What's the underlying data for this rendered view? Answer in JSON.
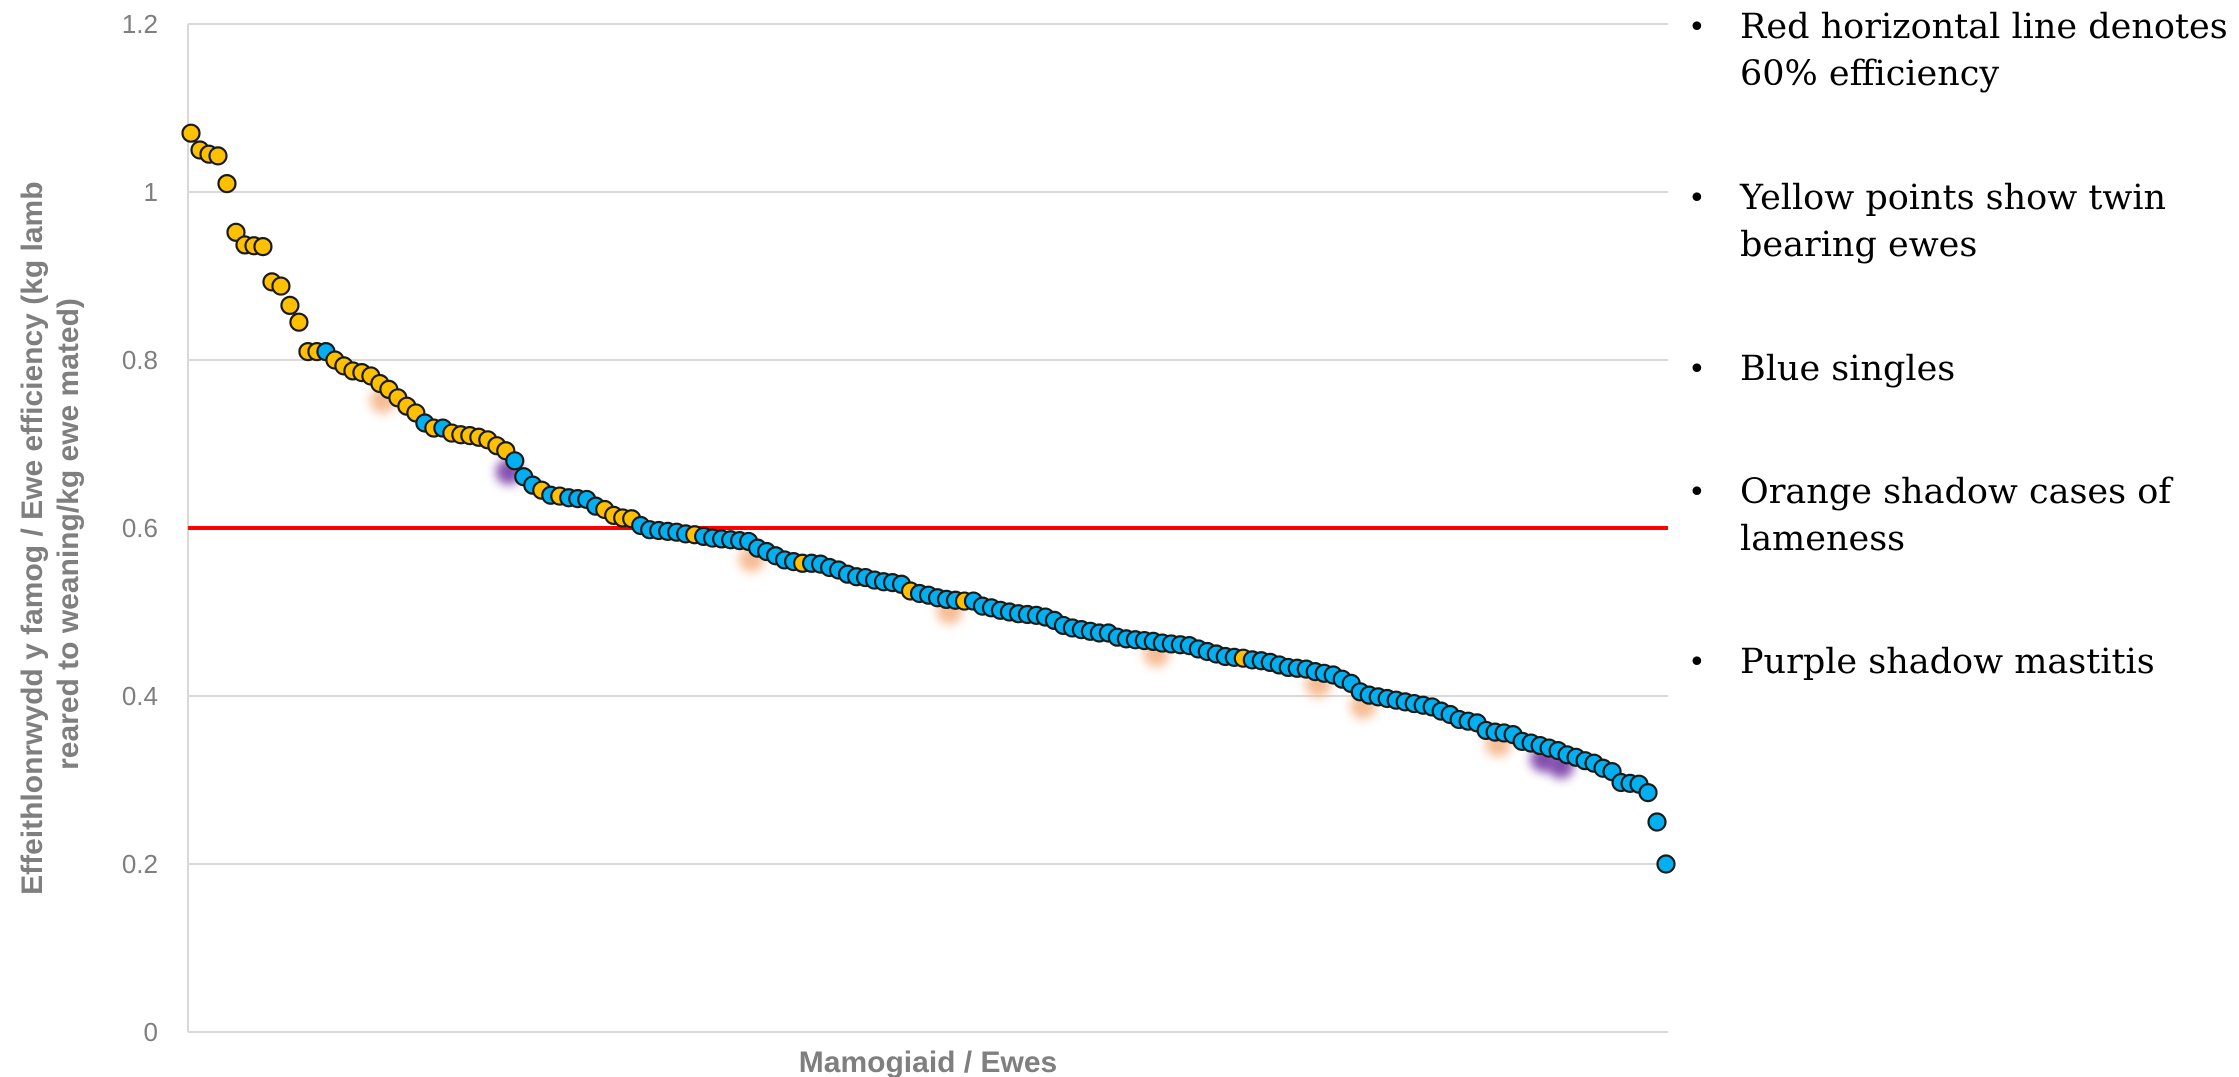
{
  "chart_data": {
    "type": "scatter",
    "xlabel": "Mamogiaid / Ewes",
    "ylabel_lines": [
      "Effeithlonrwydd y famog / Ewe efficiency (kg lamb",
      "reared to weaning/kg ewe mated)"
    ],
    "ylim": [
      0,
      1.2
    ],
    "yticks": [
      "0",
      "0.2",
      "0.4",
      "0.6",
      "0.8",
      "1",
      "1.2"
    ],
    "ytick_values": [
      0,
      0.2,
      0.4,
      0.6,
      0.8,
      1.0,
      1.2
    ],
    "grid": true,
    "reference_line": {
      "y": 0.6,
      "color": "#ff0000"
    },
    "colors": {
      "twin": "#ffc000",
      "single": "#00b0f0",
      "lameness": "#f4b183",
      "mastitis": "#7030a0",
      "grid": "#d9d9d9"
    },
    "series": [
      {
        "name": "Yellow points show twin bearing ewes",
        "color": "#ffc000",
        "values": [
          1.07,
          1.05,
          1.045,
          1.043,
          1.01,
          0.952,
          0.937,
          0.936,
          0.935,
          0.893,
          0.888,
          0.865,
          0.845,
          0.81,
          0.81,
          0.8,
          0.793,
          0.785,
          0.787,
          0.781,
          0.772,
          0.765,
          0.755,
          0.745,
          0.737,
          0.719,
          0.713,
          0.711,
          0.71,
          0.708,
          0.705,
          0.698,
          0.692,
          0.645,
          0.638,
          0.622,
          0.615,
          0.612,
          0.611,
          0.592,
          0.558,
          0.525,
          0.513,
          0.445
        ]
      },
      {
        "name": "Blue singles",
        "color": "#00b0f0",
        "values": [
          0.81,
          0.725,
          0.719,
          0.68,
          0.661,
          0.651,
          0.639,
          0.636,
          0.635,
          0.634,
          0.626,
          0.603,
          0.598,
          0.597,
          0.596,
          0.595,
          0.593,
          0.59,
          0.588,
          0.587,
          0.586,
          0.585,
          0.584,
          0.576,
          0.572,
          0.567,
          0.562,
          0.56,
          0.558,
          0.557,
          0.553,
          0.55,
          0.545,
          0.542,
          0.541,
          0.538,
          0.536,
          0.535,
          0.533,
          0.522,
          0.52,
          0.517,
          0.515,
          0.514,
          0.513,
          0.507,
          0.505,
          0.502,
          0.5,
          0.498,
          0.497,
          0.496,
          0.494,
          0.49,
          0.484,
          0.481,
          0.479,
          0.477,
          0.475,
          0.475,
          0.47,
          0.468,
          0.467,
          0.466,
          0.465,
          0.463,
          0.462,
          0.461,
          0.46,
          0.456,
          0.453,
          0.45,
          0.447,
          0.446,
          0.443,
          0.442,
          0.44,
          0.437,
          0.434,
          0.433,
          0.432,
          0.429,
          0.427,
          0.425,
          0.42,
          0.415,
          0.405,
          0.401,
          0.399,
          0.397,
          0.395,
          0.393,
          0.391,
          0.389,
          0.387,
          0.382,
          0.378,
          0.372,
          0.37,
          0.368,
          0.359,
          0.357,
          0.356,
          0.354,
          0.346,
          0.344,
          0.341,
          0.338,
          0.335,
          0.33,
          0.327,
          0.323,
          0.32,
          0.314,
          0.31,
          0.297,
          0.296,
          0.295,
          0.285,
          0.25,
          0.2
        ]
      }
    ],
    "flags": [
      {
        "type": "lameness",
        "rank": 22
      },
      {
        "type": "lameness",
        "rank": 63
      },
      {
        "type": "lameness",
        "rank": 85
      },
      {
        "type": "lameness",
        "rank": 108
      },
      {
        "type": "lameness",
        "rank": 126
      },
      {
        "type": "lameness",
        "rank": 131
      },
      {
        "type": "lameness",
        "rank": 146
      },
      {
        "type": "mastitis",
        "rank": 36
      },
      {
        "type": "mastitis",
        "rank": 151
      },
      {
        "type": "mastitis",
        "rank": 153
      }
    ]
  },
  "notes": [
    "Red horizontal line denotes 60% efficiency",
    "Yellow points show twin bearing ewes",
    "Blue singles",
    "Orange shadow cases of lameness",
    "Purple shadow mastitis"
  ]
}
